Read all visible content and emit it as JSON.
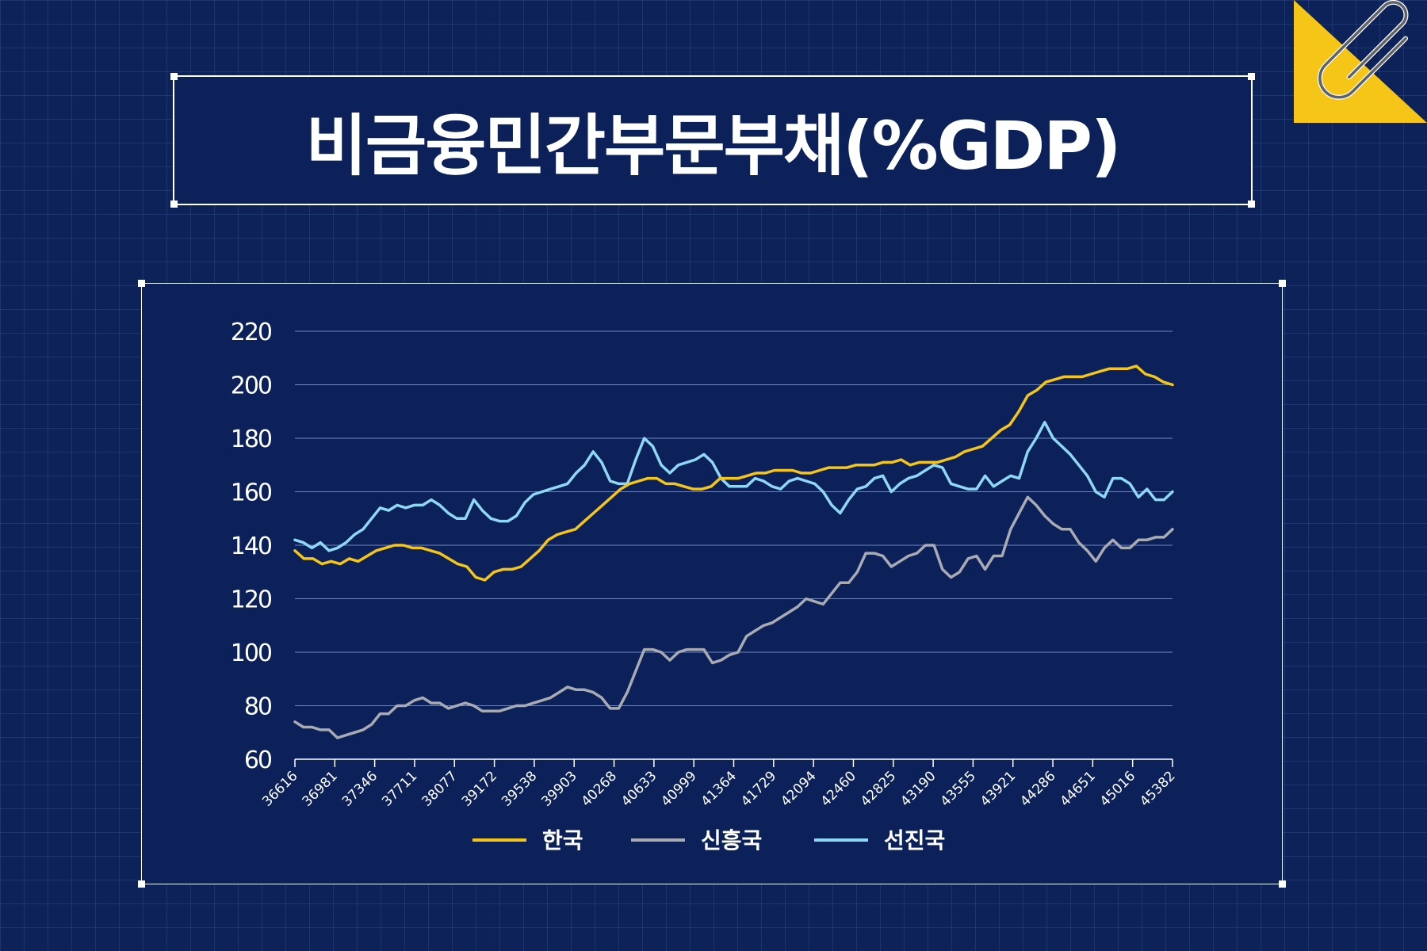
{
  "title": "비금융민간부문부채(%GDP)",
  "colors": {
    "background": "#0c2258",
    "panel": "#0c2159",
    "korea": "#f5c518",
    "emerging": "#a9abb3",
    "advanced": "#8fd8f5",
    "gridline": "#6f86c4",
    "accent_tab": "#f5c518"
  },
  "icons": {
    "corner": "paperclip-icon"
  },
  "chart_data": {
    "type": "line",
    "title": "비금융민간부문부채(%GDP)",
    "xlabel": "",
    "ylabel": "",
    "ylim": [
      60,
      220
    ],
    "yticks": [
      60,
      80,
      100,
      120,
      140,
      160,
      180,
      200,
      220
    ],
    "xticks": [
      "36616",
      "36981",
      "37346",
      "37711",
      "38077",
      "39172",
      "39538",
      "39903",
      "40268",
      "40633",
      "40999",
      "41364",
      "41729",
      "42094",
      "42460",
      "42825",
      "43190",
      "43555",
      "43921",
      "44286",
      "44651",
      "45016",
      "45382"
    ],
    "grid": "horizontal",
    "legend_position": "bottom",
    "series": [
      {
        "name": "한국",
        "color": "#f5c518",
        "values": [
          138,
          135,
          135,
          133,
          134,
          133,
          135,
          134,
          136,
          138,
          139,
          140,
          140,
          139,
          139,
          138,
          137,
          135,
          133,
          132,
          128,
          127,
          130,
          131,
          131,
          132,
          135,
          138,
          142,
          144,
          145,
          146,
          149,
          152,
          155,
          158,
          161,
          163,
          164,
          165,
          165,
          163,
          163,
          162,
          161,
          161,
          162,
          165,
          165,
          165,
          166,
          167,
          167,
          168,
          168,
          168,
          167,
          167,
          168,
          169,
          169,
          169,
          170,
          170,
          170,
          171,
          171,
          172,
          170,
          171,
          171,
          171,
          172,
          173,
          175,
          176,
          177,
          180,
          183,
          185,
          190,
          196,
          198,
          201,
          202,
          203,
          203,
          203,
          204,
          205,
          206,
          206,
          206,
          207,
          204,
          203,
          201,
          200
        ]
      },
      {
        "name": "신흥국",
        "color": "#a9abb3",
        "values": [
          74,
          72,
          72,
          71,
          71,
          68,
          69,
          70,
          71,
          73,
          77,
          77,
          80,
          80,
          82,
          83,
          81,
          81,
          79,
          80,
          81,
          80,
          78,
          78,
          78,
          79,
          80,
          80,
          81,
          82,
          83,
          85,
          87,
          86,
          86,
          85,
          83,
          79,
          79,
          85,
          93,
          101,
          101,
          100,
          97,
          100,
          101,
          101,
          101,
          96,
          97,
          99,
          100,
          106,
          108,
          110,
          111,
          113,
          115,
          117,
          120,
          119,
          118,
          122,
          126,
          126,
          130,
          137,
          137,
          136,
          132,
          134,
          136,
          137,
          140,
          140,
          131,
          128,
          130,
          135,
          136,
          131,
          136,
          136,
          146,
          152,
          158,
          155,
          151,
          148,
          146,
          146,
          141,
          138,
          134,
          139,
          142,
          139,
          139,
          142,
          142,
          143,
          143,
          146
        ]
      },
      {
        "name": "선진국",
        "color": "#8fd8f5",
        "values": [
          142,
          141,
          139,
          141,
          138,
          139,
          141,
          144,
          146,
          150,
          154,
          153,
          155,
          154,
          155,
          155,
          157,
          155,
          152,
          150,
          150,
          157,
          153,
          150,
          149,
          149,
          151,
          156,
          159,
          160,
          161,
          162,
          163,
          167,
          170,
          175,
          171,
          164,
          163,
          163,
          172,
          180,
          177,
          170,
          167,
          170,
          171,
          172,
          174,
          171,
          165,
          162,
          162,
          162,
          165,
          164,
          162,
          161,
          164,
          165,
          164,
          163,
          160,
          155,
          152,
          157,
          161,
          162,
          165,
          166,
          160,
          163,
          165,
          166,
          168,
          170,
          169,
          163,
          162,
          161,
          161,
          166,
          162,
          164,
          166,
          165,
          175,
          180,
          186,
          180,
          177,
          174,
          170,
          166,
          160,
          158,
          165,
          165,
          163,
          158,
          161,
          157,
          157,
          160
        ]
      }
    ]
  }
}
